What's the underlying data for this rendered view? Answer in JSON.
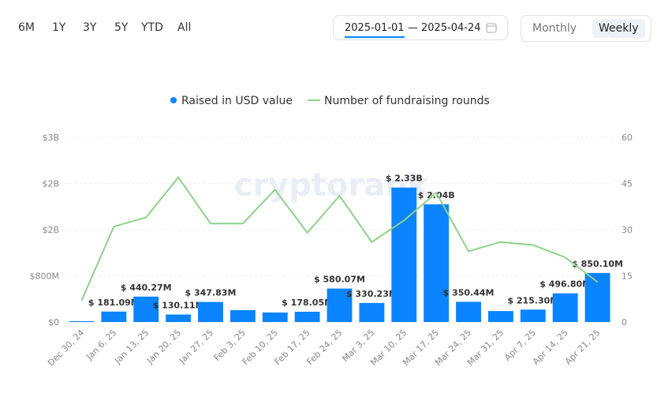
{
  "controls": {
    "ranges": [
      "6M",
      "1Y",
      "3Y",
      "5Y",
      "YTD",
      "All"
    ],
    "date_from": "2025-01-01",
    "date_sep": "—",
    "date_to": "2025-04-24",
    "periods": [
      "Monthly",
      "Weekly"
    ],
    "selected_period": "Weekly"
  },
  "watermark": "cryptorank",
  "chart_data": {
    "type": "bar-line",
    "categories": [
      "Dec 30, 24",
      "Jan 6, 25",
      "Jan 13, 25",
      "Jan 20, 25",
      "Jan 27, 25",
      "Feb 3, 25",
      "Feb 10, 25",
      "Feb 17, 25",
      "Feb 24, 25",
      "Mar 3, 25",
      "Mar 10, 25",
      "Mar 17, 25",
      "Mar 24, 25",
      "Mar 31, 25",
      "Apr 7, 25",
      "Apr 14, 25",
      "Apr 21, 25"
    ],
    "series": [
      {
        "name": "Raised in USD value",
        "type": "bar",
        "color": "#0a84ff",
        "axis": "y",
        "values": [
          15,
          181.09,
          440.27,
          130.11,
          347.83,
          205,
          165,
          178.05,
          580.07,
          330.23,
          2330,
          2040,
          350.44,
          190,
          215.3,
          496.8,
          850.1
        ],
        "value_labels": [
          null,
          "$ 181.09M",
          "$ 440.27M",
          "$ 130.11M",
          "$ 347.83M",
          null,
          null,
          "$ 178.05M",
          "$ 580.07M",
          "$ 330.23M",
          "$ 2.33B",
          "$ 2.04B",
          "$ 350.44M",
          null,
          "$ 215.30M",
          "$ 496.80M",
          "$ 850.10M"
        ]
      },
      {
        "name": "Number of fundraising rounds",
        "type": "line",
        "color": "#8fd18a",
        "axis": "y2",
        "values": [
          7,
          31,
          34,
          47,
          32,
          32,
          43,
          29,
          41,
          26,
          33,
          42,
          23,
          26,
          25,
          21,
          13
        ]
      }
    ],
    "ylim": [
      0,
      3200
    ],
    "yticks": [
      {
        "value": 0,
        "label": "$0"
      },
      {
        "value": 800,
        "label": "$800M"
      },
      {
        "value": 1600,
        "label": "$2B"
      },
      {
        "value": 2400,
        "label": "$2B"
      },
      {
        "value": 3200,
        "label": "$3B"
      }
    ],
    "y2lim": [
      0,
      60
    ],
    "y2ticks": [
      0,
      15,
      30,
      45,
      60
    ],
    "grid": true
  }
}
